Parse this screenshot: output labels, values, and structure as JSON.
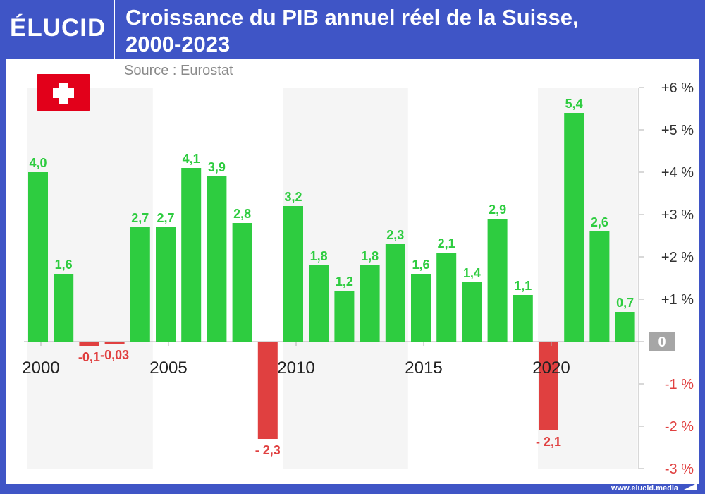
{
  "header": {
    "logo": "ÉLUCID",
    "title_line1": "Croissance du PIB annuel réel de la Suisse,",
    "title_line2": "2000-2023",
    "source": "Source : Eurostat"
  },
  "footer": {
    "url": "www.elucid.media"
  },
  "colors": {
    "brand": "#3f55c6",
    "positive": "#2ecc40",
    "negative": "#e04040",
    "band": "#f5f5f5",
    "flag": "#e2001a"
  },
  "chart_data": {
    "type": "bar",
    "title": "Croissance du PIB annuel réel de la Suisse, 2000-2023",
    "ylabel": "",
    "xlabel": "",
    "ylim": [
      -3,
      6
    ],
    "categories": [
      "2000",
      "2001",
      "2002",
      "2003",
      "2004",
      "2005",
      "2006",
      "2007",
      "2008",
      "2009",
      "2010",
      "2011",
      "2012",
      "2013",
      "2014",
      "2015",
      "2016",
      "2017",
      "2018",
      "2019",
      "2020",
      "2021",
      "2022",
      "2023"
    ],
    "values": [
      4.0,
      1.6,
      -0.1,
      -0.03,
      2.7,
      2.7,
      4.1,
      3.9,
      2.8,
      -2.3,
      3.2,
      1.8,
      1.2,
      1.8,
      2.3,
      1.6,
      2.1,
      1.4,
      2.9,
      1.1,
      -2.1,
      5.4,
      2.6,
      0.7
    ],
    "value_labels": [
      "4,0",
      "1,6",
      "-0,1",
      "-0,03",
      "2,7",
      "2,7",
      "4,1",
      "3,9",
      "2,8",
      "- 2,3",
      "3,2",
      "1,8",
      "1,2",
      "1,8",
      "2,3",
      "1,6",
      "2,1",
      "1,4",
      "2,9",
      "1,1",
      "- 2,1",
      "5,4",
      "2,6",
      "0,7"
    ],
    "x_ticks": [
      {
        "index": 0,
        "label": "2000"
      },
      {
        "index": 5,
        "label": "2005"
      },
      {
        "index": 10,
        "label": "2010"
      },
      {
        "index": 15,
        "label": "2015"
      },
      {
        "index": 20,
        "label": "2020"
      }
    ],
    "y_ticks": [
      {
        "value": 6,
        "label": "+6 %"
      },
      {
        "value": 5,
        "label": "+5 %"
      },
      {
        "value": 4,
        "label": "+4 %"
      },
      {
        "value": 3,
        "label": "+3 %"
      },
      {
        "value": 2,
        "label": "+2 %"
      },
      {
        "value": 1,
        "label": "+1 %"
      },
      {
        "value": 0,
        "label": "0"
      },
      {
        "value": -1,
        "label": "-1 %"
      },
      {
        "value": -2,
        "label": "-2 %"
      },
      {
        "value": -3,
        "label": "-3 %"
      }
    ],
    "shaded_bands": [
      {
        "from": 0,
        "to": 4
      },
      {
        "from": 10,
        "to": 14
      },
      {
        "from": 20,
        "to": 23
      }
    ]
  }
}
